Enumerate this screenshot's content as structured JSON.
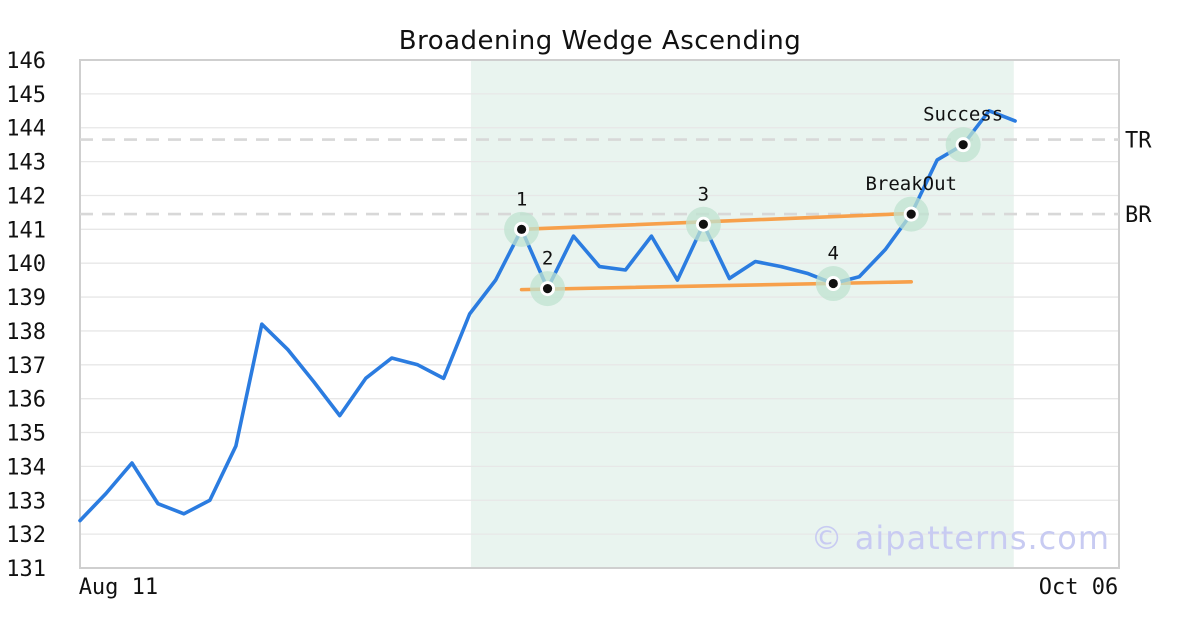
{
  "title": "Broadening Wedge Ascending",
  "watermark": "© aipatterns.com",
  "colors": {
    "price_line": "#2b7ce0",
    "trendline": "#f7a04b",
    "marker_halo": "#bfe3d0",
    "marker_dot": "#111111",
    "marker_ring": "#ffffff",
    "pattern_zone": "#e9f4ef",
    "grid": "#e7e7e7",
    "spine": "#cfcfcf",
    "dashed_level": "#d8d8d8",
    "text": "#111111",
    "watermark": "#c8cbf2"
  },
  "chart_data": {
    "type": "line",
    "title": "Broadening Wedge Ascending",
    "xlabel": "",
    "ylabel": "",
    "ylim": [
      131,
      146
    ],
    "xlim": [
      0,
      40
    ],
    "grid": true,
    "legend": false,
    "y_ticks": [
      131,
      132,
      133,
      134,
      135,
      136,
      137,
      138,
      139,
      140,
      141,
      142,
      143,
      144,
      145,
      146
    ],
    "y_gridlines": [
      132,
      133,
      134,
      135,
      136,
      137,
      138,
      139,
      140,
      141,
      142,
      143,
      144,
      145
    ],
    "x_ticks": [
      {
        "label": "Aug 11",
        "frac": 0.037
      },
      {
        "label": "Oct 06",
        "frac": 0.961
      }
    ],
    "series": [
      {
        "name": "price",
        "x": [
          0,
          1,
          2,
          3,
          4,
          5,
          6,
          7,
          8,
          9,
          10,
          11,
          12,
          13,
          14,
          15,
          16,
          17,
          18,
          19,
          20,
          21,
          22,
          23,
          24,
          25,
          26,
          27,
          28,
          29,
          30,
          31,
          32,
          33,
          34,
          35,
          36
        ],
        "values": [
          132.4,
          133.2,
          134.1,
          132.9,
          132.6,
          133.0,
          134.6,
          138.2,
          137.45,
          136.5,
          135.5,
          136.6,
          137.2,
          137.0,
          136.6,
          138.5,
          139.5,
          141.0,
          139.25,
          140.8,
          139.9,
          139.8,
          140.8,
          139.5,
          141.15,
          139.55,
          140.05,
          139.9,
          139.7,
          139.4,
          139.6,
          140.4,
          141.45,
          143.05,
          143.5,
          144.5,
          144.2
        ]
      }
    ],
    "pattern_zone": {
      "start_index": 15.05,
      "end_index": 35.95
    },
    "trendlines": [
      {
        "name": "upper-trendline",
        "x1": 17,
        "y1": 141.0,
        "x2": 32,
        "y2": 141.47
      },
      {
        "name": "lower-trendline",
        "x1": 17,
        "y1": 139.22,
        "x2": 32,
        "y2": 139.45
      }
    ],
    "levels": [
      {
        "label": "TR",
        "value": 143.65
      },
      {
        "label": "BR",
        "value": 141.45
      }
    ],
    "annotations": [
      {
        "label": "1",
        "index": 17,
        "value": 141.0
      },
      {
        "label": "2",
        "index": 18,
        "value": 139.25
      },
      {
        "label": "3",
        "index": 24,
        "value": 141.15
      },
      {
        "label": "4",
        "index": 29,
        "value": 139.4
      },
      {
        "label": "BreakOut",
        "index": 32,
        "value": 141.45
      },
      {
        "label": "Success",
        "index": 34,
        "value": 143.5
      }
    ]
  }
}
